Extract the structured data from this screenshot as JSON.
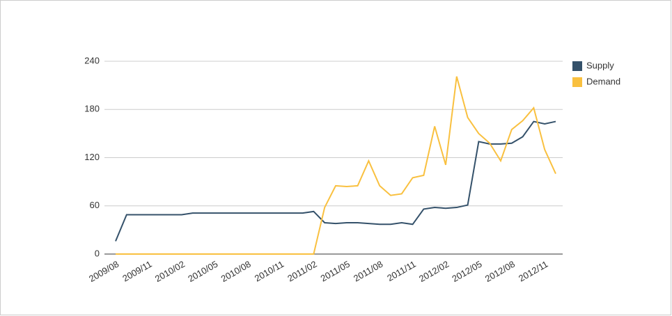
{
  "chart_data": {
    "type": "line",
    "categories": [
      "2009/08",
      null,
      null,
      "2009/11",
      null,
      null,
      "2010/02",
      null,
      null,
      "2010/05",
      null,
      null,
      "2010/08",
      null,
      null,
      "2010/11",
      null,
      null,
      "2011/02",
      null,
      null,
      "2011/05",
      null,
      null,
      "2011/08",
      null,
      null,
      "2011/11",
      null,
      null,
      "2012/02",
      null,
      null,
      "2012/05",
      null,
      null,
      "2012/08",
      null,
      null,
      "2012/11",
      null
    ],
    "series": [
      {
        "name": "Supply",
        "color": "#34516a",
        "values": [
          16,
          49,
          49,
          49,
          49,
          49,
          49,
          51,
          51,
          51,
          51,
          51,
          51,
          51,
          51,
          51,
          51,
          51,
          53,
          39,
          38,
          39,
          39,
          38,
          37,
          37,
          39,
          37,
          56,
          58,
          57,
          58,
          61,
          140,
          137,
          137,
          138,
          146,
          165,
          162,
          165
        ]
      },
      {
        "name": "Demand",
        "color": "#f9c03f",
        "values": [
          0,
          0,
          0,
          0,
          0,
          0,
          0,
          0,
          0,
          0,
          0,
          0,
          0,
          0,
          0,
          0,
          0,
          0,
          0,
          58,
          85,
          84,
          85,
          116,
          85,
          73,
          75,
          95,
          98,
          159,
          111,
          221,
          170,
          150,
          138,
          116,
          155,
          166,
          182,
          130,
          100
        ]
      }
    ],
    "ylim": [
      0,
      240
    ],
    "yticks": [
      0,
      60,
      120,
      180,
      240
    ],
    "grid": true,
    "legend": "right"
  }
}
